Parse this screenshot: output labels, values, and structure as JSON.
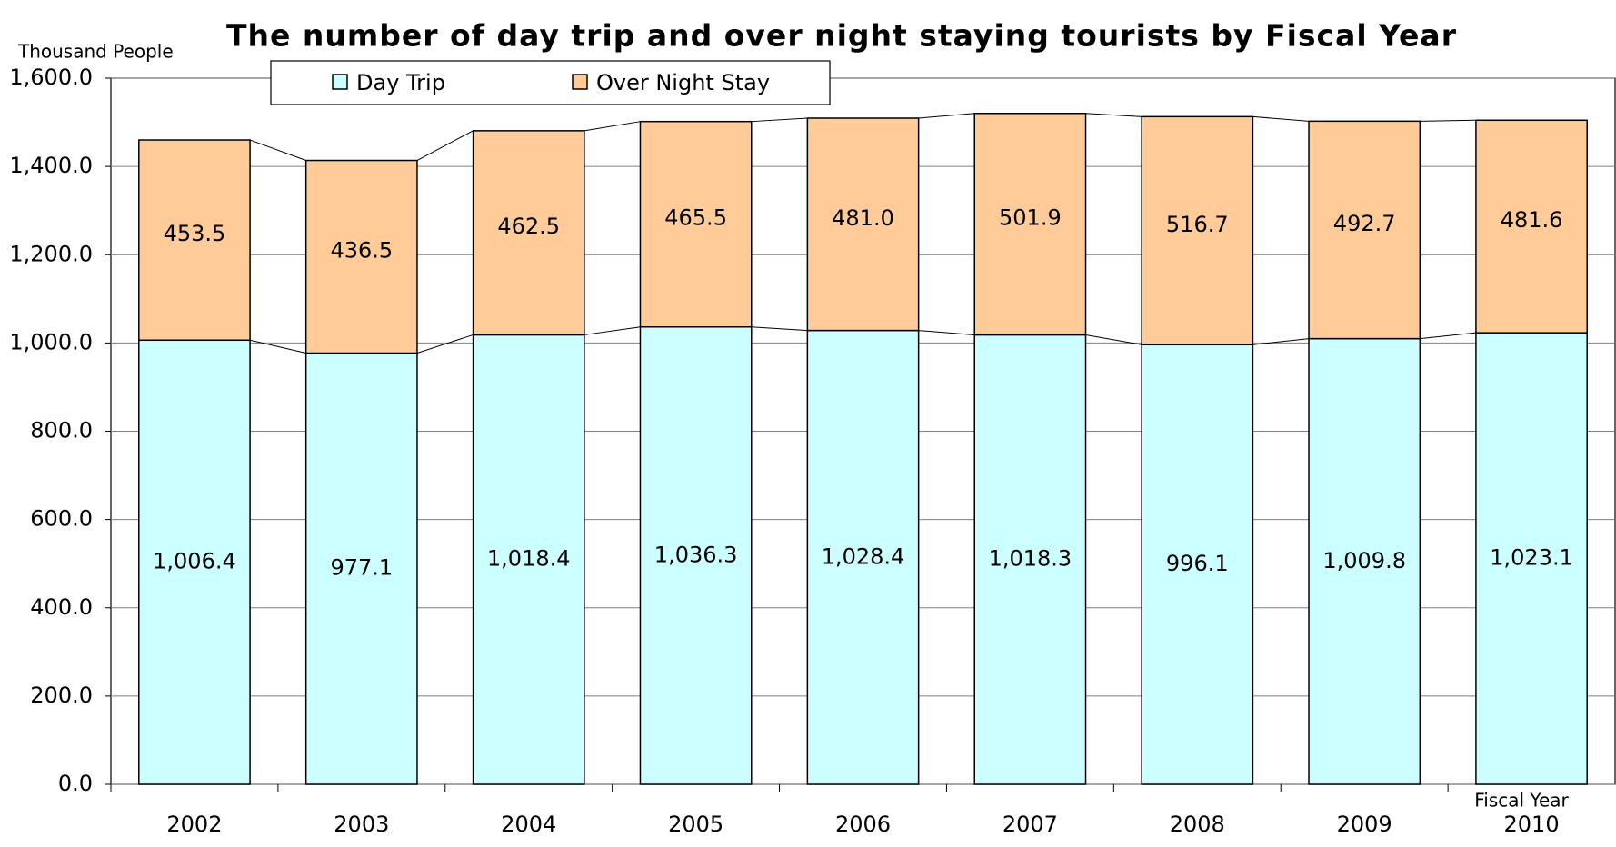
{
  "chart_data": {
    "type": "stacked_bar",
    "title": "The number of day trip and over night staying tourists by Fiscal Year",
    "y_axis_label": "Thousand People",
    "x_axis_label": "Fiscal Year",
    "categories": [
      "2002",
      "2003",
      "2004",
      "2005",
      "2006",
      "2007",
      "2008",
      "2009",
      "2010"
    ],
    "series": [
      {
        "name": "Day Trip",
        "color": "#ccffff",
        "values": [
          1006.4,
          977.1,
          1018.4,
          1036.3,
          1028.4,
          1018.3,
          996.1,
          1009.8,
          1023.1
        ],
        "value_labels": [
          "1,006.4",
          "977.1",
          "1,018.4",
          "1,036.3",
          "1,028.4",
          "1,018.3",
          "996.1",
          "1,009.8",
          "1,023.1"
        ]
      },
      {
        "name": "Over Night Stay",
        "color": "#ffcc99",
        "values": [
          453.5,
          436.5,
          462.5,
          465.5,
          481.0,
          501.9,
          516.7,
          492.7,
          481.6
        ],
        "value_labels": [
          "453.5",
          "436.5",
          "462.5",
          "465.5",
          "481.0",
          "501.9",
          "516.7",
          "492.7",
          "481.6"
        ]
      }
    ],
    "ylim": [
      0,
      1600
    ],
    "yticks": [
      {
        "value": 0,
        "label": "0.0"
      },
      {
        "value": 200,
        "label": "200.0"
      },
      {
        "value": 400,
        "label": "400.0"
      },
      {
        "value": 600,
        "label": "600.0"
      },
      {
        "value": 800,
        "label": "800.0"
      },
      {
        "value": 1000,
        "label": "1,000.0"
      },
      {
        "value": 1200,
        "label": "1,200.0"
      },
      {
        "value": 1400,
        "label": "1,400.0"
      },
      {
        "value": 1600,
        "label": "1,600.0"
      }
    ],
    "grid": true,
    "legend": "top"
  }
}
